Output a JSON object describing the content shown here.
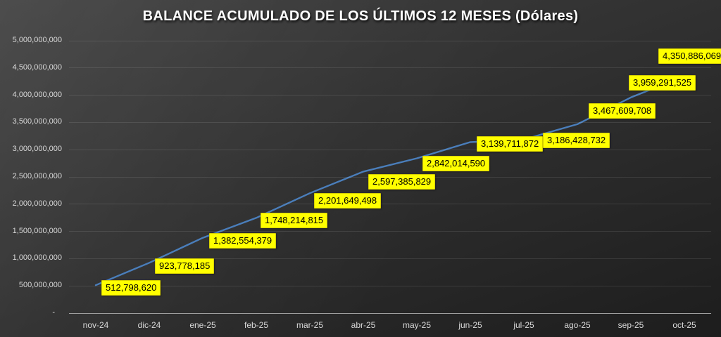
{
  "chart_data": {
    "type": "line",
    "title": "BALANCE ACUMULADO DE LOS ÚLTIMOS 12 MESES (Dólares)",
    "categories": [
      "nov-24",
      "dic-24",
      "ene-25",
      "feb-25",
      "mar-25",
      "abr-25",
      "may-25",
      "jun-25",
      "jul-25",
      "ago-25",
      "sep-25",
      "oct-25"
    ],
    "values": [
      512798620,
      923778185,
      1382554379,
      1748214815,
      2201649498,
      2597385829,
      2842014590,
      3139711872,
      3186428732,
      3467609708,
      3959291525,
      4350886069
    ],
    "value_labels": [
      "512,798,620",
      "923,778,185",
      "1,382,554,379",
      "1,748,214,815",
      "2,201,649,498",
      "2,597,385,829",
      "2,842,014,590",
      "3,139,711,872",
      "3,186,428,732",
      "3,467,609,708",
      "3,959,291,525",
      "4,350,886,069"
    ],
    "y_tick_values": [
      5000000000,
      4500000000,
      4000000000,
      3500000000,
      3000000000,
      2500000000,
      2000000000,
      1500000000,
      1000000000,
      500000000,
      0
    ],
    "y_tick_labels": [
      "5,000,000,000",
      "4,500,000,000",
      "4,000,000,000",
      "3,500,000,000",
      "3,000,000,000",
      "2,500,000,000",
      "2,000,000,000",
      "1,500,000,000",
      "1,000,000,000",
      "500,000,000",
      "-"
    ],
    "ylim": [
      0,
      5000000000
    ],
    "grid": true,
    "legend": "none",
    "xlabel": "",
    "ylabel": "",
    "colors": {
      "line": "#4a7ebb",
      "label_bg": "#ffff00",
      "label_border": "#d6d000",
      "label_text": "#000000",
      "axis_text": "#d9d9d9",
      "gridline": "rgba(255,255,255,0.10)",
      "axis_line": "#9e9e9e",
      "title_text": "#ffffff"
    }
  }
}
